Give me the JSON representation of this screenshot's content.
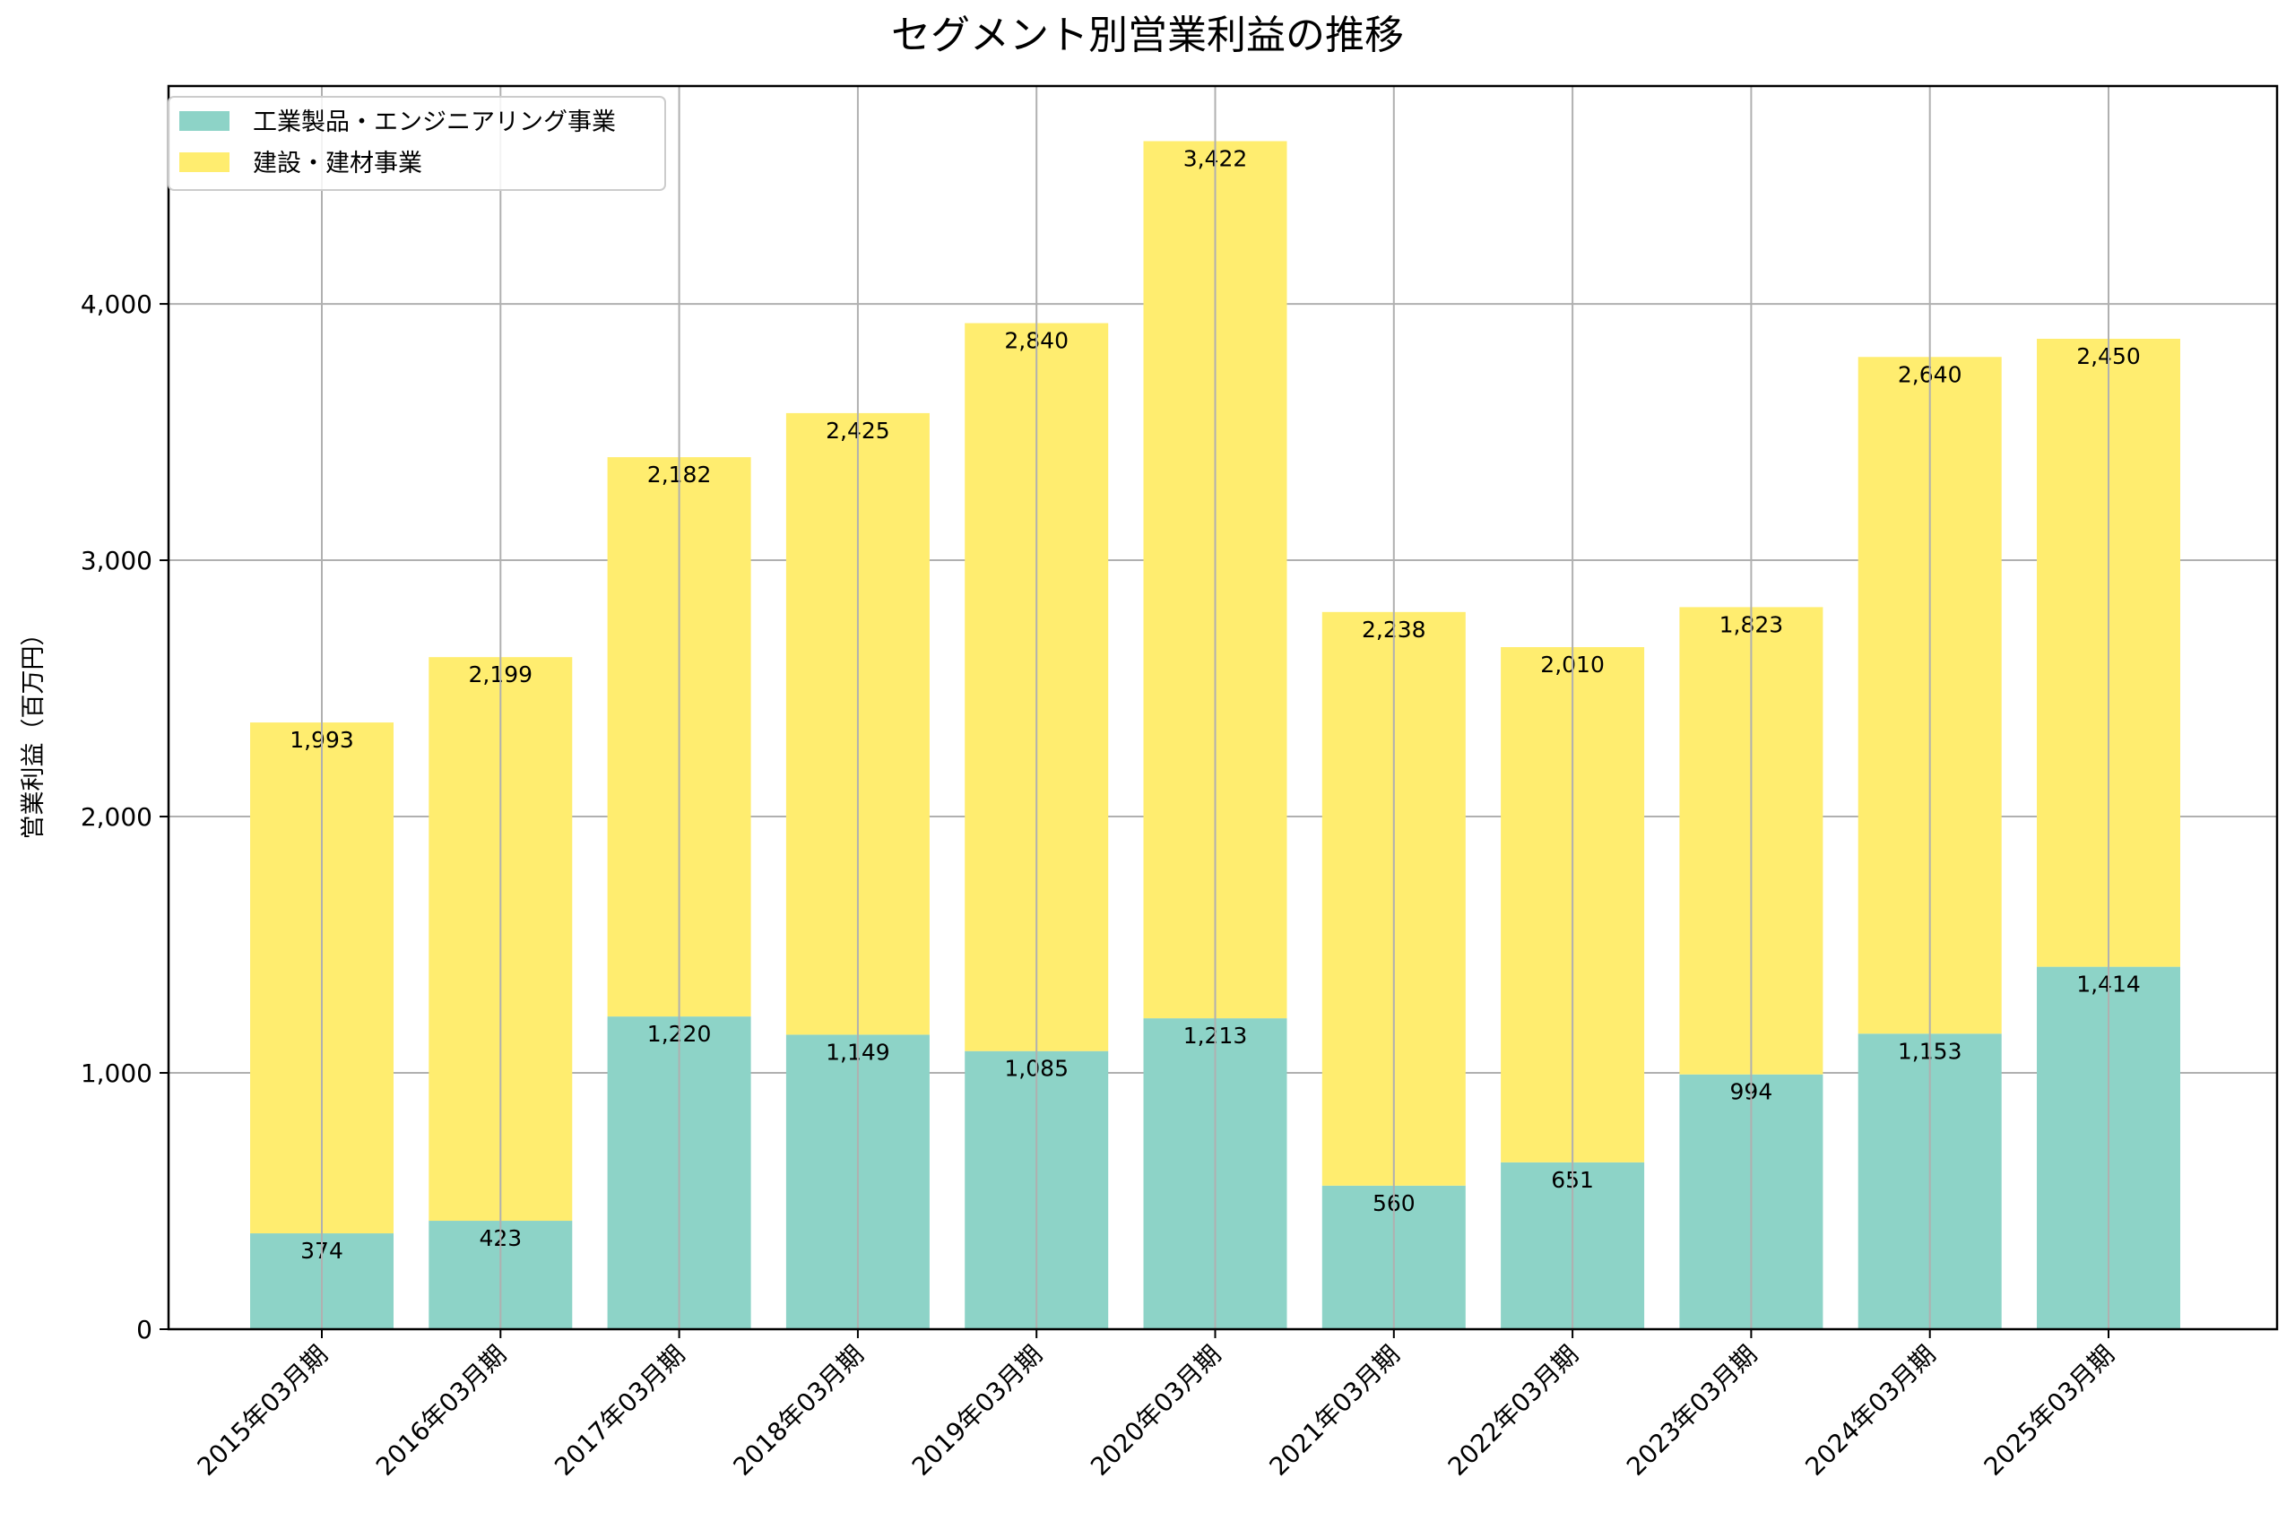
{
  "colors": {
    "segment1": "#8dd3c7",
    "segment2": "#ffed6f",
    "grid": "#b0b0b0"
  },
  "chart_data": {
    "type": "bar",
    "stacked": true,
    "title": "セグメント別営業利益の推移",
    "xlabel": "",
    "ylabel": "営業利益（百万円）",
    "ylim": [
      0,
      4850
    ],
    "yticks": [
      0,
      1000,
      2000,
      3000,
      4000
    ],
    "ytick_labels": [
      "0",
      "1,000",
      "2,000",
      "3,000",
      "4,000"
    ],
    "grid": true,
    "legend_position": "top-left",
    "categories": [
      "2015年03月期",
      "2016年03月期",
      "2017年03月期",
      "2018年03月期",
      "2019年03月期",
      "2020年03月期",
      "2021年03月期",
      "2022年03月期",
      "2023年03月期",
      "2024年03月期",
      "2025年03月期"
    ],
    "series": [
      {
        "name": "工業製品・エンジニアリング事業",
        "color": "#8dd3c7",
        "values": [
          374,
          423,
          1220,
          1149,
          1085,
          1213,
          560,
          651,
          994,
          1153,
          1414
        ],
        "labels": [
          "374",
          "423",
          "1,220",
          "1,149",
          "1,085",
          "1,213",
          "560",
          "651",
          "994",
          "1,153",
          "1,414"
        ]
      },
      {
        "name": "建設・建材事業",
        "color": "#ffed6f",
        "values": [
          1993,
          2199,
          2182,
          2425,
          2840,
          3422,
          2238,
          2010,
          1823,
          2640,
          2450
        ],
        "labels": [
          "1,993",
          "2,199",
          "2,182",
          "2,425",
          "2,840",
          "3,422",
          "2,238",
          "2,010",
          "1,823",
          "2,640",
          "2,450"
        ]
      }
    ]
  }
}
